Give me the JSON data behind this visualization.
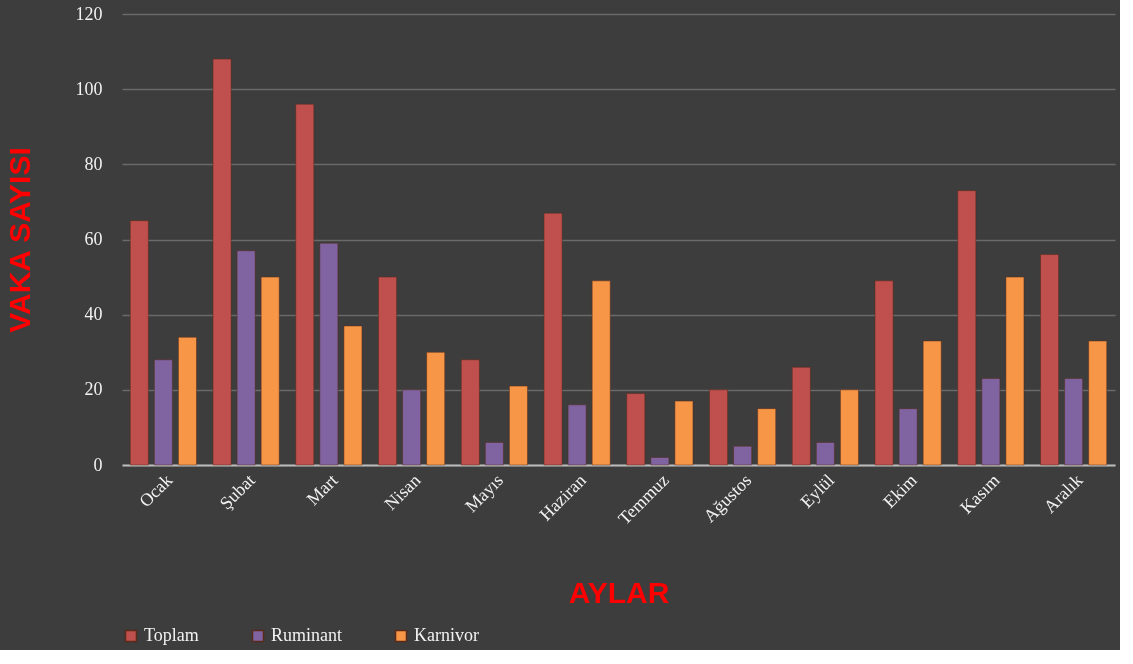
{
  "chart_data": {
    "type": "bar",
    "xlabel": "AYLAR",
    "ylabel": "VAKA SAYISI",
    "categories": [
      "Ocak",
      "Şubat",
      "Mart",
      "Nisan",
      "Mayıs",
      "Haziran",
      "Temmuz",
      "Ağustos",
      "Eylül",
      "Ekim",
      "Kasım",
      "Aralık"
    ],
    "series": [
      {
        "name": "Toplam",
        "color": "#c0504d",
        "values": [
          65,
          108,
          96,
          50,
          28,
          67,
          19,
          20,
          26,
          49,
          73,
          56
        ]
      },
      {
        "name": "Ruminant",
        "color": "#8064a2",
        "values": [
          28,
          57,
          59,
          20,
          6,
          16,
          2,
          5,
          6,
          15,
          23,
          23
        ]
      },
      {
        "name": "Karnivor",
        "color": "#f79646",
        "values": [
          34,
          50,
          37,
          30,
          21,
          49,
          17,
          15,
          20,
          33,
          50,
          33
        ]
      }
    ],
    "ylim": [
      0,
      120
    ],
    "yticks": [
      0,
      20,
      40,
      60,
      80,
      100,
      120
    ],
    "grid": "y",
    "legend": "bottom"
  }
}
